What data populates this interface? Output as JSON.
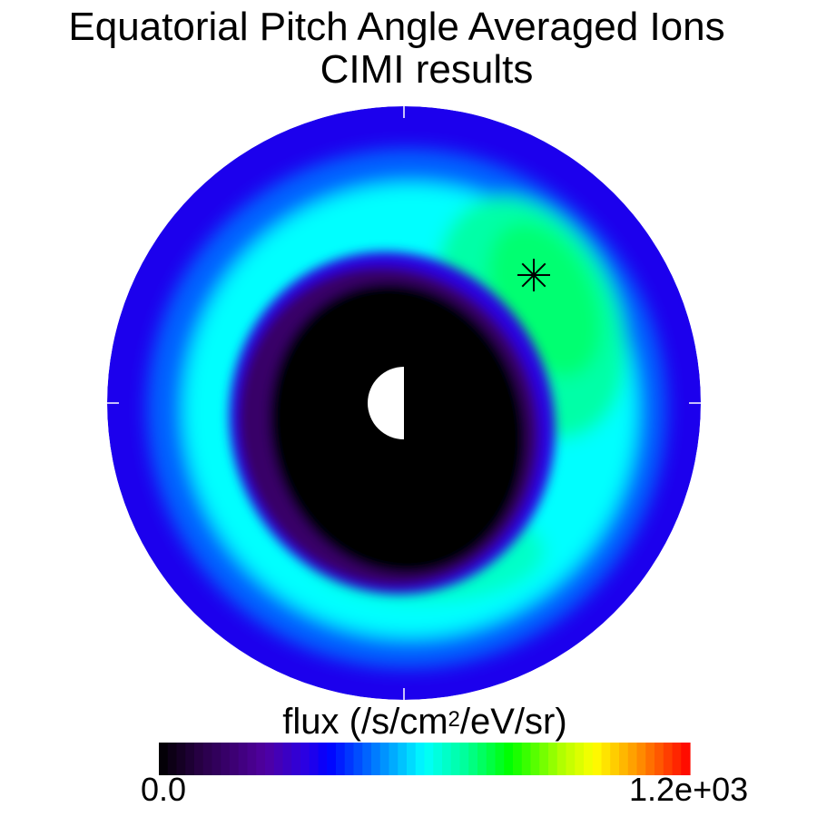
{
  "chart_data": {
    "type": "polar-contour",
    "title": "Equatorial Pitch Angle Averaged Ions",
    "subtitle": "CIMI results",
    "colorbar": {
      "label_prefix": "flux (/s/cm",
      "label_sup": "2",
      "label_suffix": "/eV/sr)",
      "min_label": "0.0",
      "max_label": "1.2e+03",
      "vmin": 0,
      "vmax": 1200,
      "colormap": "rainbow (black-purple-blue-cyan-green-yellow-red)"
    },
    "peak_flux_approx": 720,
    "features": {
      "earth_marker": "half-disk, dayside white, nightside black",
      "satellite_marker": "asterisk",
      "region_map": [
        {
          "region": "inner core",
          "flux": 0
        },
        {
          "region": "purple ring",
          "flux": 150
        },
        {
          "region": "outer edge",
          "flux": 350
        },
        {
          "region": "ring-current band",
          "flux": 600
        },
        {
          "region": "dusk enhancement",
          "flux": 720
        }
      ]
    }
  }
}
